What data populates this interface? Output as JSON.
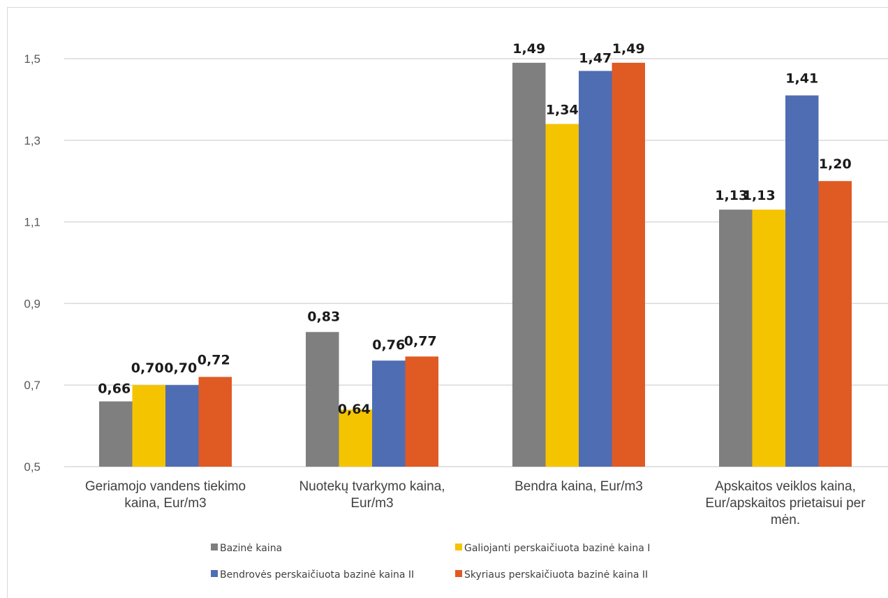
{
  "chart_data": {
    "type": "bar",
    "title": "",
    "xlabel": "",
    "ylabel": "",
    "ylim": [
      0.5,
      1.6
    ],
    "yticks": [
      "0,5",
      "0,7",
      "0,9",
      "1,1",
      "1,3",
      "1,5"
    ],
    "ytick_values": [
      0.5,
      0.7,
      0.9,
      1.1,
      1.3,
      1.5
    ],
    "grid": true,
    "legend_position": "bottom",
    "categories": [
      [
        "Geriamojo vandens tiekimo",
        "kaina, Eur/m3"
      ],
      [
        "Nuotekų tvarkymo kaina,",
        "Eur/m3"
      ],
      [
        "Bendra kaina, Eur/m3"
      ],
      [
        "Apskaitos veiklos kaina,",
        "Eur/apskaitos prietaisui per",
        "mėn."
      ]
    ],
    "series": [
      {
        "name": "Bazinė kaina",
        "color": "#7f7f7f",
        "values": [
          0.66,
          0.83,
          1.49,
          1.13
        ],
        "labels": [
          "0,66",
          "0,83",
          "1,49",
          "1,13"
        ]
      },
      {
        "name": "Galiojanti perskaičiuota bazinė kaina I",
        "color": "#f5c400",
        "values": [
          0.7,
          0.64,
          1.34,
          1.13
        ],
        "labels": [
          "0,70",
          "0,64",
          "1,34",
          "1,13"
        ]
      },
      {
        "name": "Bendrovės perskaičiuota bazinė kaina II",
        "color": "#4f6db3",
        "values": [
          0.7,
          0.76,
          1.47,
          1.41
        ],
        "labels": [
          "0,70",
          "0,76",
          "1,47",
          "1,41"
        ]
      },
      {
        "name": "Skyriaus perskaičiuota bazinė kaina II",
        "color": "#e05a24",
        "values": [
          0.72,
          0.77,
          1.49,
          1.2
        ],
        "labels": [
          "0,72",
          "0,77",
          "1,49",
          "1,20"
        ]
      }
    ]
  }
}
